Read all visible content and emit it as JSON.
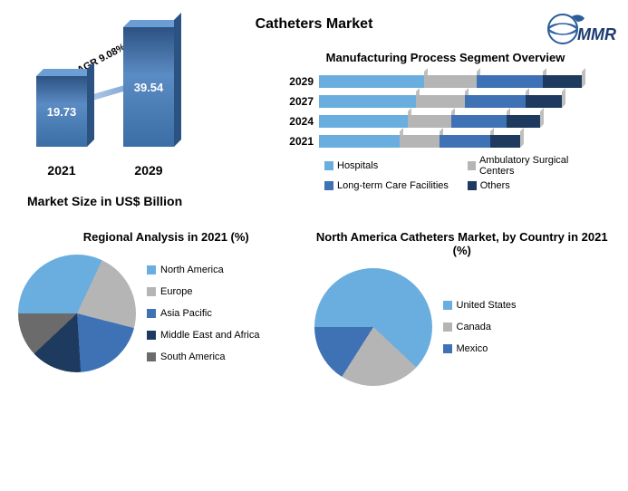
{
  "title": "Catheters Market",
  "logo_text": "MMR",
  "bar_chart": {
    "cagr_label": "CAGR 9.08%",
    "bars": [
      {
        "year": "2021",
        "value": "19.73",
        "height": 78
      },
      {
        "year": "2029",
        "value": "39.54",
        "height": 132
      }
    ],
    "axis_label": "Market Size in US$ Billion"
  },
  "hbar_chart": {
    "title": "Manufacturing Process Segment Overview",
    "years": [
      "2029",
      "2027",
      "2024",
      "2021"
    ],
    "widths": [
      290,
      268,
      244,
      222
    ],
    "segments": [
      {
        "label": "Hospitals",
        "color": "#6aaee0",
        "frac": 0.4
      },
      {
        "label": "Ambulatory Surgical Centers",
        "color": "#b5b5b5",
        "frac": 0.2
      },
      {
        "label": "Long-term Care Facilities",
        "color": "#3f72b5",
        "frac": 0.25
      },
      {
        "label": "Others",
        "color": "#1e3a5f",
        "frac": 0.15
      }
    ]
  },
  "pie_regional": {
    "title": "Regional Analysis in 2021 (%)",
    "slices": [
      {
        "label": "North America",
        "color": "#6aaee0",
        "pct": 32
      },
      {
        "label": "Europe",
        "color": "#b5b5b5",
        "pct": 22
      },
      {
        "label": "Asia Pacific",
        "color": "#3f72b5",
        "pct": 20
      },
      {
        "label": "Middle East and Africa",
        "color": "#1e3a5f",
        "pct": 14
      },
      {
        "label": "South America",
        "color": "#6b6b6b",
        "pct": 12
      }
    ]
  },
  "pie_na": {
    "title": "North America Catheters Market, by Country in 2021 (%)",
    "slices": [
      {
        "label": "United States",
        "color": "#6aaee0",
        "pct": 62
      },
      {
        "label": "Canada",
        "color": "#b5b5b5",
        "pct": 22
      },
      {
        "label": "Mexico",
        "color": "#3f72b5",
        "pct": 16
      }
    ]
  }
}
